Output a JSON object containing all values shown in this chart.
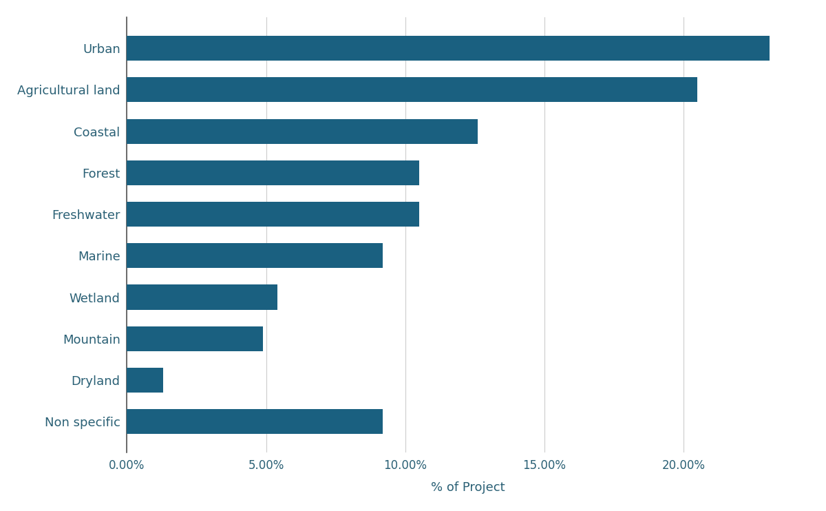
{
  "categories": [
    "Urban",
    "Agricultural land",
    "Coastal",
    "Forest",
    "Freshwater",
    "Marine",
    "Wetland",
    "Mountain",
    "Dryland",
    "Non specific"
  ],
  "values": [
    23.1,
    20.5,
    12.6,
    10.5,
    10.5,
    9.2,
    5.4,
    4.9,
    1.3,
    9.2
  ],
  "bar_color": "#1a6080",
  "xlabel": "% of Project",
  "xlim": [
    0,
    24.5
  ],
  "xticks": [
    0,
    5,
    10,
    15,
    20
  ],
  "xtick_labels": [
    "0.00%",
    "5.00%",
    "10.00%",
    "15.00%",
    "20.00%"
  ],
  "xlabel_fontsize": 13,
  "tick_fontsize": 12,
  "label_fontsize": 13,
  "bar_height": 0.6,
  "background_color": "#ffffff",
  "grid_color": "#cccccc",
  "grid_linewidth": 0.8,
  "spine_color": "#555555",
  "text_color": "#2a6075"
}
